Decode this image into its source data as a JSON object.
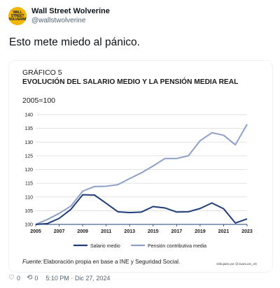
{
  "tweet": {
    "avatar_text": "WALL STREET WOLVERINE",
    "display_name": "Wall Street Wolverine",
    "handle": "@wallstwolverine",
    "text": "Esto mete miedo al pánico.",
    "likes": "0",
    "retweets": "0",
    "timestamp": "5:10 PM · Dic 27, 2024"
  },
  "icons": {
    "like": "heart-icon",
    "retweet": "retweet-icon"
  },
  "colors": {
    "salario": "#1f3d7a",
    "pension": "#8ea0c9",
    "grid": "#d9d9d9",
    "axis": "#1f3d7a"
  },
  "chart_data": {
    "type": "line",
    "kicker": "GRÁFICO 5",
    "title": "EVOLUCIÓN DEL SALARIO MEDIO Y LA PENSIÓN MEDIA REAL",
    "subtitle": "2005=100",
    "x": [
      2005,
      2006,
      2007,
      2008,
      2009,
      2010,
      2011,
      2012,
      2013,
      2014,
      2015,
      2016,
      2017,
      2018,
      2019,
      2020,
      2021,
      2022,
      2023
    ],
    "x_ticks": [
      "2005",
      "2007",
      "2009",
      "2011",
      "2013",
      "2015",
      "2017",
      "2019",
      "2021",
      "2023"
    ],
    "y_ticks": [
      "100",
      "105",
      "110",
      "115",
      "120",
      "125",
      "130",
      "135",
      "140"
    ],
    "ylim": [
      100,
      140
    ],
    "xlim": [
      2005,
      2023
    ],
    "grid": "horizontal",
    "legend_position": "bottom",
    "series": [
      {
        "name": "Salario medio",
        "values": [
          100,
          100.3,
          102.2,
          105.5,
          110.8,
          110.7,
          107.7,
          104.6,
          104.3,
          104.5,
          106.5,
          106.0,
          104.5,
          104.6,
          105.8,
          107.8,
          105.7,
          100.5,
          102.0
        ]
      },
      {
        "name": "Pensión contributiva media",
        "values": [
          100,
          101.8,
          104.0,
          106.7,
          112.1,
          113.8,
          113.9,
          114.5,
          116.7,
          118.8,
          121.3,
          124.0,
          124.0,
          125.0,
          130.5,
          133.4,
          132.5,
          129.0,
          136.5
        ]
      }
    ],
    "source_label": "Fuente:",
    "source_text": "Elaboración propia en base a INE y Seguridad Social.",
    "credit": "Dibujado por @JuanLuis_JG"
  }
}
